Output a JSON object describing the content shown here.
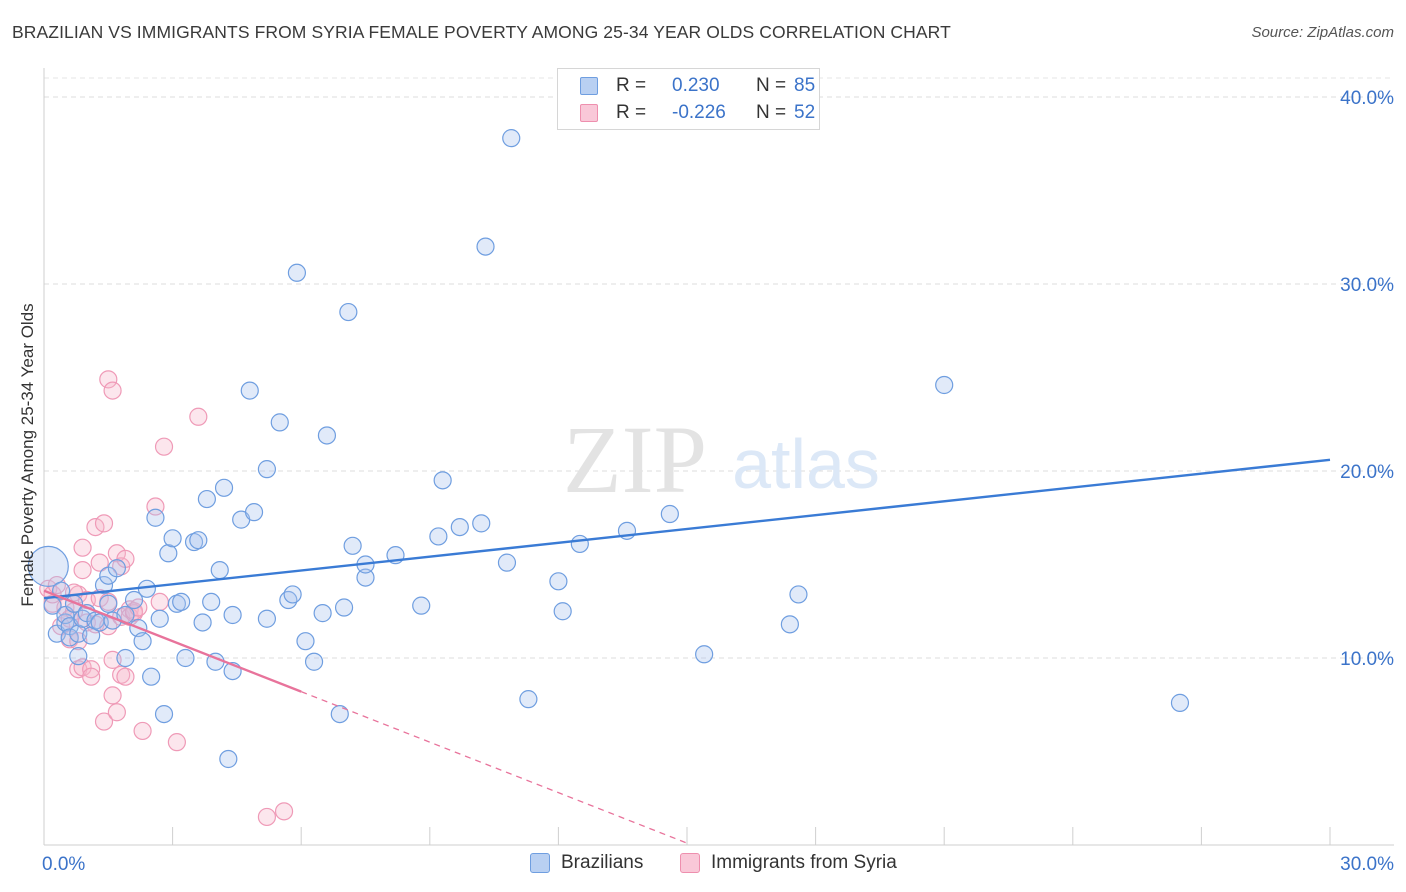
{
  "title": "BRAZILIAN VS IMMIGRANTS FROM SYRIA FEMALE POVERTY AMONG 25-34 YEAR OLDS CORRELATION CHART",
  "source": "Source: ZipAtlas.com",
  "watermark": {
    "zip": "ZIP",
    "atlas": "atlas"
  },
  "legend": {
    "r_label": "R =",
    "n_label": "N =",
    "rows": [
      {
        "r": "0.230",
        "n": "85",
        "fill": "#b9d0f2",
        "stroke": "#6f9ee0"
      },
      {
        "r": "-0.226",
        "n": "52",
        "fill": "#f9c8d8",
        "stroke": "#ee8fae"
      }
    ]
  },
  "bottom_legend": [
    {
      "name": "Brazilians",
      "fill": "#b9d0f2",
      "stroke": "#6f9ee0"
    },
    {
      "name": "Immigrants from Syria",
      "fill": "#f9c8d8",
      "stroke": "#ee8fae"
    }
  ],
  "chart_data": {
    "type": "scatter",
    "title": "BRAZILIAN VS IMMIGRANTS FROM SYRIA FEMALE POVERTY AMONG 25-34 YEAR OLDS CORRELATION CHART",
    "xlabel": "",
    "ylabel": "Female Poverty Among 25-34 Year Olds",
    "xlim": [
      0,
      30
    ],
    "ylim": [
      0,
      40
    ],
    "x_tick_labels": [
      "0.0%",
      "30.0%"
    ],
    "y_ticks": [
      10,
      20,
      30,
      40
    ],
    "y_tick_labels": [
      "10.0%",
      "20.0%",
      "30.0%",
      "40.0%"
    ],
    "grid": true,
    "colors": {
      "brazilians": "#3a7bd5",
      "syria": "#e8739b"
    },
    "series": [
      {
        "name": "Brazilians",
        "points": [
          [
            0.1,
            14.9
          ],
          [
            0.2,
            12.8
          ],
          [
            0.3,
            11.3
          ],
          [
            0.4,
            13.6
          ],
          [
            0.5,
            11.9
          ],
          [
            0.5,
            12.3
          ],
          [
            0.6,
            11.7
          ],
          [
            0.6,
            11.1
          ],
          [
            0.7,
            12.9
          ],
          [
            0.8,
            10.1
          ],
          [
            0.8,
            11.3
          ],
          [
            0.9,
            12.1
          ],
          [
            1.0,
            12.4
          ],
          [
            1.1,
            11.2
          ],
          [
            1.2,
            12.0
          ],
          [
            1.3,
            11.9
          ],
          [
            1.4,
            13.9
          ],
          [
            1.5,
            12.9
          ],
          [
            1.5,
            14.4
          ],
          [
            1.6,
            12.0
          ],
          [
            1.7,
            14.8
          ],
          [
            1.9,
            10.0
          ],
          [
            1.9,
            12.3
          ],
          [
            2.1,
            13.1
          ],
          [
            2.2,
            11.6
          ],
          [
            2.3,
            10.9
          ],
          [
            2.4,
            13.7
          ],
          [
            2.5,
            9.0
          ],
          [
            2.6,
            17.5
          ],
          [
            2.7,
            12.1
          ],
          [
            2.8,
            7.0
          ],
          [
            2.9,
            15.6
          ],
          [
            3.0,
            16.4
          ],
          [
            3.1,
            12.9
          ],
          [
            3.2,
            13.0
          ],
          [
            3.3,
            10.0
          ],
          [
            3.5,
            16.2
          ],
          [
            3.6,
            16.3
          ],
          [
            3.7,
            11.9
          ],
          [
            3.8,
            18.5
          ],
          [
            3.9,
            13.0
          ],
          [
            4.0,
            9.8
          ],
          [
            4.1,
            14.7
          ],
          [
            4.2,
            19.1
          ],
          [
            4.3,
            4.6
          ],
          [
            4.4,
            12.3
          ],
          [
            4.4,
            9.3
          ],
          [
            4.6,
            17.4
          ],
          [
            4.8,
            24.3
          ],
          [
            4.9,
            17.8
          ],
          [
            5.2,
            12.1
          ],
          [
            5.2,
            20.1
          ],
          [
            5.5,
            22.6
          ],
          [
            5.7,
            13.1
          ],
          [
            5.8,
            13.4
          ],
          [
            5.9,
            30.6
          ],
          [
            6.1,
            10.9
          ],
          [
            6.3,
            9.8
          ],
          [
            6.5,
            12.4
          ],
          [
            6.6,
            21.9
          ],
          [
            6.9,
            7.0
          ],
          [
            7.0,
            12.7
          ],
          [
            7.1,
            28.5
          ],
          [
            7.2,
            16.0
          ],
          [
            7.5,
            14.3
          ],
          [
            7.5,
            15.0
          ],
          [
            8.2,
            15.5
          ],
          [
            8.8,
            12.8
          ],
          [
            9.2,
            16.5
          ],
          [
            9.3,
            19.5
          ],
          [
            9.7,
            17.0
          ],
          [
            10.2,
            17.2
          ],
          [
            10.3,
            32.0
          ],
          [
            10.8,
            15.1
          ],
          [
            10.9,
            37.8
          ],
          [
            11.3,
            7.8
          ],
          [
            12.0,
            14.1
          ],
          [
            12.1,
            12.5
          ],
          [
            12.5,
            16.1
          ],
          [
            13.6,
            16.8
          ],
          [
            14.6,
            17.7
          ],
          [
            15.4,
            10.2
          ],
          [
            17.4,
            11.8
          ],
          [
            17.6,
            13.4
          ],
          [
            21.0,
            24.6
          ],
          [
            26.5,
            7.6
          ]
        ]
      },
      {
        "name": "Immigrants from Syria",
        "points": [
          [
            0.1,
            13.7
          ],
          [
            0.2,
            12.9
          ],
          [
            0.2,
            13.4
          ],
          [
            0.3,
            13.9
          ],
          [
            0.4,
            11.7
          ],
          [
            0.5,
            12.7
          ],
          [
            0.6,
            11.0
          ],
          [
            0.6,
            12.1
          ],
          [
            0.7,
            12.5
          ],
          [
            0.8,
            10.9
          ],
          [
            0.8,
            9.4
          ],
          [
            0.8,
            13.4
          ],
          [
            0.9,
            9.5
          ],
          [
            0.9,
            14.7
          ],
          [
            0.9,
            15.9
          ],
          [
            1.0,
            13.1
          ],
          [
            1.0,
            11.9
          ],
          [
            1.1,
            9.4
          ],
          [
            1.1,
            9.0
          ],
          [
            1.2,
            11.8
          ],
          [
            1.2,
            17.0
          ],
          [
            1.3,
            15.1
          ],
          [
            1.3,
            13.2
          ],
          [
            1.4,
            17.2
          ],
          [
            1.4,
            6.6
          ],
          [
            1.5,
            11.7
          ],
          [
            1.5,
            24.9
          ],
          [
            1.5,
            13.0
          ],
          [
            1.6,
            24.3
          ],
          [
            1.6,
            8.0
          ],
          [
            1.6,
            9.9
          ],
          [
            1.7,
            7.1
          ],
          [
            1.7,
            15.6
          ],
          [
            1.8,
            12.2
          ],
          [
            1.8,
            14.9
          ],
          [
            1.8,
            9.1
          ],
          [
            1.9,
            15.3
          ],
          [
            1.9,
            9.0
          ],
          [
            2.0,
            12.6
          ],
          [
            2.0,
            12.2
          ],
          [
            2.1,
            12.4
          ],
          [
            2.1,
            12.5
          ],
          [
            2.2,
            12.7
          ],
          [
            2.3,
            6.1
          ],
          [
            2.6,
            18.1
          ],
          [
            2.7,
            13.0
          ],
          [
            2.8,
            21.3
          ],
          [
            3.1,
            5.5
          ],
          [
            3.6,
            22.9
          ],
          [
            5.2,
            1.5
          ],
          [
            5.6,
            1.8
          ],
          [
            0.7,
            13.5
          ]
        ]
      }
    ],
    "trend_lines": [
      {
        "name": "Brazilians",
        "x": [
          0,
          30
        ],
        "y": [
          13.2,
          20.6
        ],
        "style": "solid"
      },
      {
        "name": "Immigrants from Syria",
        "x": [
          0,
          6
        ],
        "y": [
          13.6,
          8.2
        ],
        "style": "solid"
      },
      {
        "name": "Immigrants from Syria",
        "x": [
          6,
          15
        ],
        "y": [
          8.2,
          0.1
        ],
        "style": "dashed"
      }
    ]
  }
}
